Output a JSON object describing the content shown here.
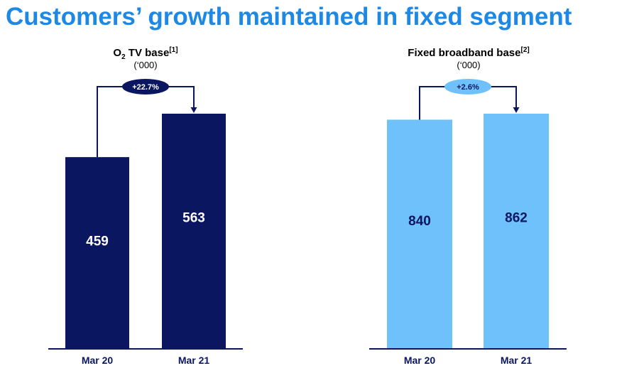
{
  "page": {
    "title": "Customers’ growth maintained in fixed segment"
  },
  "colors": {
    "title": "#1e88e5",
    "dark_bar": "#0b1660",
    "light_bar": "#6ec1fb",
    "axis": "#0b1660"
  },
  "chart_data": [
    {
      "type": "bar",
      "title_main": "O",
      "title_sub": "2",
      "title_rest": " TV base",
      "title_note": "[1]",
      "subtitle": "(‘000)",
      "categories": [
        "Mar 20",
        "Mar 21"
      ],
      "values": [
        459,
        563
      ],
      "value_labels": [
        "459",
        "563"
      ],
      "growth_label": "+22.7%",
      "bar_color": "#0b1660",
      "label_color": "#ffffff",
      "badge_color": "#0b1660",
      "badge_text_color": "#ffffff"
    },
    {
      "type": "bar",
      "title_main": "Fixed broadband base",
      "title_sub": "",
      "title_rest": "",
      "title_note": "[2]",
      "subtitle": "(‘000)",
      "categories": [
        "Mar 20",
        "Mar 21"
      ],
      "values": [
        840,
        862
      ],
      "value_labels": [
        "840",
        "862"
      ],
      "growth_label": "+2.6%",
      "bar_color": "#6ec1fb",
      "label_color": "#0b1660",
      "badge_color": "#6ec1fb",
      "badge_text_color": "#0b1660"
    }
  ]
}
